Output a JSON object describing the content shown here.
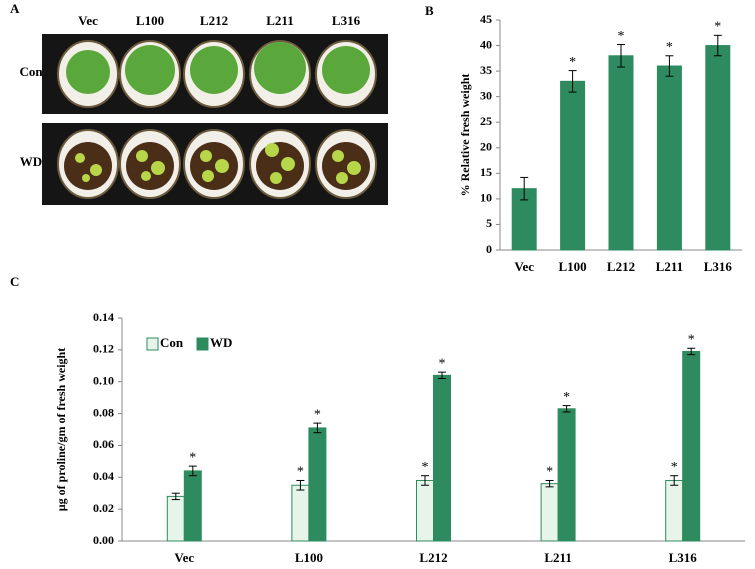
{
  "panel_a": {
    "label": "A",
    "columns": [
      "Vec",
      "L100",
      "L212",
      "L211",
      "L316"
    ],
    "rows": [
      "Con",
      "WD"
    ]
  },
  "chart_data": [
    {
      "type": "bar",
      "label": "B",
      "y_label": "% Relative fresh weight",
      "categories": [
        "Vec",
        "L100",
        "L212",
        "L211",
        "L316"
      ],
      "values": [
        12,
        33,
        38,
        36,
        40
      ],
      "errors": [
        2.2,
        2.1,
        2.2,
        2.0,
        2.0
      ],
      "significance": [
        null,
        "*",
        "*",
        "*",
        "*"
      ],
      "color": "#2e8b5f",
      "ylim": [
        0,
        45
      ],
      "yticks": [
        0,
        5,
        10,
        15,
        20,
        25,
        30,
        35,
        40,
        45
      ]
    },
    {
      "type": "grouped_bar",
      "label": "C",
      "y_label": "µg of proline/gm of fresh weight",
      "categories": [
        "Vec",
        "L100",
        "L212",
        "L211",
        "L316"
      ],
      "series": [
        {
          "name": "Con",
          "color": "#e6f4ea",
          "values": [
            0.028,
            0.035,
            0.038,
            0.036,
            0.038
          ],
          "errors": [
            0.002,
            0.003,
            0.003,
            0.002,
            0.003
          ],
          "significance": [
            null,
            "*",
            "*",
            "*",
            "*"
          ]
        },
        {
          "name": "WD",
          "color": "#2e8b5f",
          "values": [
            0.044,
            0.071,
            0.104,
            0.083,
            0.119
          ],
          "errors": [
            0.003,
            0.003,
            0.002,
            0.002,
            0.002
          ],
          "significance": [
            "*",
            "*",
            "*",
            "*",
            "*"
          ]
        }
      ],
      "ylim": [
        0,
        0.14
      ],
      "yticks": [
        {
          "value": 0,
          "label": "0.00"
        },
        0.02,
        0.04,
        0.06,
        0.08,
        {
          "value": 0.1,
          "label": "0.10"
        },
        0.12,
        0.14
      ],
      "legend": "top-left"
    }
  ]
}
